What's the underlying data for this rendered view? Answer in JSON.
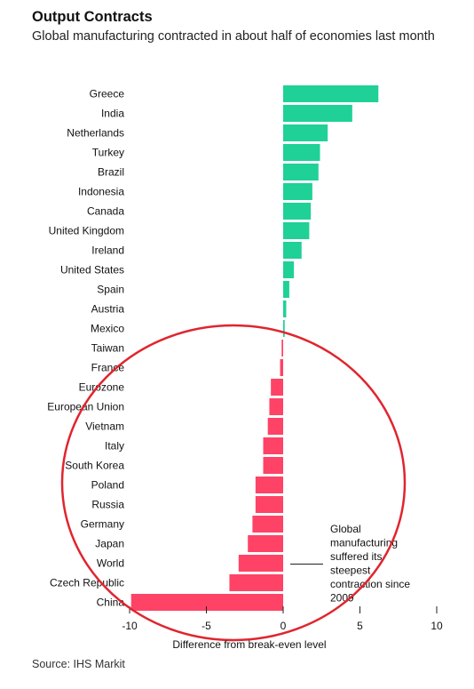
{
  "header": {
    "title": "Output Contracts",
    "subtitle": "Global manufacturing contracted in about half of economies last month"
  },
  "footer": {
    "source": "Source: IHS Markit"
  },
  "colors": {
    "positive": "#1fd196",
    "negative": "#ff4366",
    "annotation_line": "#222222",
    "circle": "#e0252f"
  },
  "chart_data": {
    "type": "bar",
    "orientation": "horizontal",
    "categories": [
      "Greece",
      "India",
      "Netherlands",
      "Turkey",
      "Brazil",
      "Indonesia",
      "Canada",
      "United Kingdom",
      "Ireland",
      "United States",
      "Spain",
      "Austria",
      "Mexico",
      "Taiwan",
      "France",
      "Eurozone",
      "European Union",
      "Vietnam",
      "Italy",
      "South Korea",
      "Poland",
      "Russia",
      "Germany",
      "Japan",
      "World",
      "Czech Republic",
      "China"
    ],
    "values": [
      6.2,
      4.5,
      2.9,
      2.4,
      2.3,
      1.9,
      1.8,
      1.7,
      1.2,
      0.7,
      0.4,
      0.2,
      0.1,
      -0.1,
      -0.2,
      -0.8,
      -0.9,
      -1.0,
      -1.3,
      -1.3,
      -1.8,
      -1.8,
      -2.0,
      -2.3,
      -2.9,
      -3.5,
      -9.9
    ],
    "xlabel": "Difference from break-even level",
    "xlim": [
      -10,
      10
    ],
    "xticks": [
      -10,
      -5,
      0,
      5,
      10
    ],
    "xtick_labels": [
      "-10",
      "-5",
      "0",
      "5",
      "10"
    ],
    "annotation": {
      "target": "World",
      "lines": [
        "Global",
        "manufacturing",
        "suffered its",
        "steepest",
        "contraction since",
        "2009"
      ]
    }
  }
}
